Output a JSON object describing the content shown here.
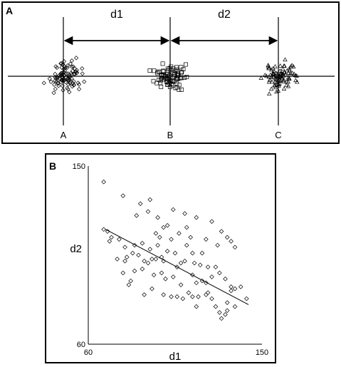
{
  "panel_a": {
    "label": "A",
    "distance_labels": [
      "d1",
      "d2"
    ],
    "cluster_labels": [
      "A",
      "B",
      "C"
    ],
    "cluster_markers": [
      "diamond",
      "square",
      "triangle"
    ]
  },
  "panel_b": {
    "label": "B"
  },
  "chart_data": {
    "type": "scatter",
    "xlabel": "d1",
    "ylabel": "d2",
    "xlim": [
      60,
      150
    ],
    "ylim": [
      60,
      150
    ],
    "x_ticks": [
      "60",
      "150"
    ],
    "y_ticks": [
      "60",
      "150"
    ],
    "marker": "diamond",
    "grid": false,
    "trend_line": {
      "x": [
        69,
        143
      ],
      "y": [
        118,
        80
      ]
    },
    "series": [
      {
        "points": [
          [
            68,
            142
          ],
          [
            78,
            135
          ],
          [
            85,
            125
          ],
          [
            87,
            131
          ],
          [
            91,
            127
          ],
          [
            92,
            133
          ],
          [
            96,
            124
          ],
          [
            101,
            120
          ],
          [
            104,
            128
          ],
          [
            110,
            126
          ],
          [
            116,
            124
          ],
          [
            124,
            122
          ],
          [
            129,
            117
          ],
          [
            99,
            119
          ],
          [
            111,
            119
          ],
          [
            95,
            116
          ],
          [
            97,
            114
          ],
          [
            103,
            113
          ],
          [
            107,
            116
          ],
          [
            113,
            114
          ],
          [
            121,
            113
          ],
          [
            68,
            118
          ],
          [
            70,
            117
          ],
          [
            72,
            114
          ],
          [
            76,
            113
          ],
          [
            79,
            109
          ],
          [
            84,
            110
          ],
          [
            88,
            111
          ],
          [
            92,
            108
          ],
          [
            96,
            110
          ],
          [
            98,
            104
          ],
          [
            101,
            107
          ],
          [
            105,
            106
          ],
          [
            111,
            110
          ],
          [
            114,
            106
          ],
          [
            119,
            106
          ],
          [
            127,
            110
          ],
          [
            132,
            114
          ],
          [
            134,
            112
          ],
          [
            136,
            109
          ],
          [
            71,
            112
          ],
          [
            80,
            104
          ],
          [
            83,
            106
          ],
          [
            86,
            105
          ],
          [
            89,
            102
          ],
          [
            91,
            101
          ],
          [
            93,
            103
          ],
          [
            95,
            103
          ],
          [
            99,
            102
          ],
          [
            106,
            99
          ],
          [
            108,
            101
          ],
          [
            110,
            102
          ],
          [
            115,
            101
          ],
          [
            118,
            100
          ],
          [
            122,
            99
          ],
          [
            126,
            99
          ],
          [
            75,
            103
          ],
          [
            79,
            102
          ],
          [
            78,
            96
          ],
          [
            84,
            97
          ],
          [
            88,
            98
          ],
          [
            94,
            95
          ],
          [
            98,
            96
          ],
          [
            100,
            93
          ],
          [
            104,
            94
          ],
          [
            108,
            90
          ],
          [
            114,
            95
          ],
          [
            116,
            91
          ],
          [
            119,
            92
          ],
          [
            121,
            91
          ],
          [
            124,
            94
          ],
          [
            128,
            96
          ],
          [
            131,
            93
          ],
          [
            134,
            89
          ],
          [
            136,
            88
          ],
          [
            139,
            89
          ],
          [
            142,
            83
          ],
          [
            81,
            90
          ],
          [
            82,
            92
          ],
          [
            89,
            85
          ],
          [
            93,
            88
          ],
          [
            99,
            85
          ],
          [
            103,
            84
          ],
          [
            106,
            84
          ],
          [
            109,
            83
          ],
          [
            112,
            86
          ],
          [
            114,
            84
          ],
          [
            117,
            84
          ],
          [
            122,
            86
          ],
          [
            124,
            83
          ],
          [
            126,
            79
          ],
          [
            128,
            76
          ],
          [
            129,
            73
          ],
          [
            131,
            75
          ],
          [
            132,
            81
          ],
          [
            134,
            87
          ],
          [
            136,
            79
          ],
          [
            132,
            77
          ],
          [
            116,
            79
          ],
          [
            121,
            85
          ]
        ]
      }
    ]
  }
}
